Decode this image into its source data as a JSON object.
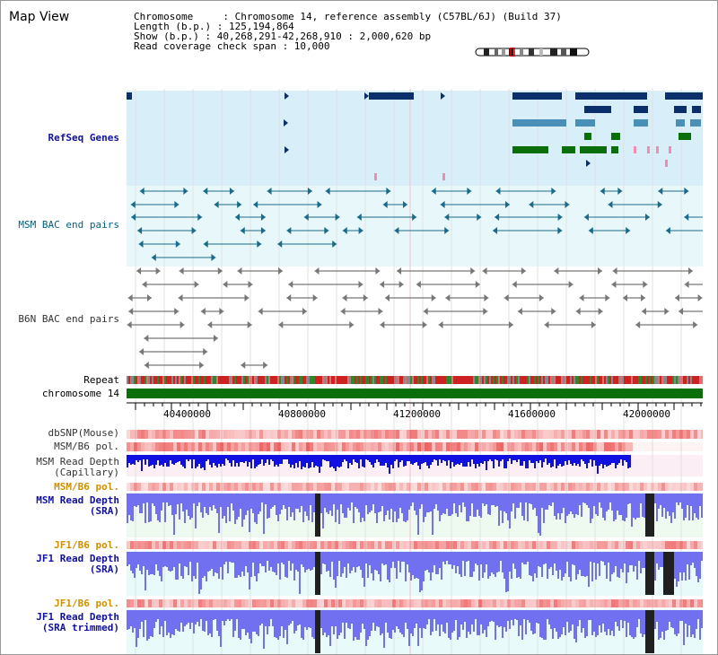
{
  "title": "Map View",
  "info": {
    "chromosome": "Chromosome     : Chromosome 14, reference assembly (C57BL/6J) (Build 37)",
    "length": "Length (b.p.) : 125,194,864",
    "show": "Show (b.p.) : 40,268,291-42,268,910 : 2,000,620 bp",
    "span": "Read coverage check span : 10,000"
  },
  "labels": {
    "refseq": "RefSeq Genes",
    "msm_bac": "MSM BAC end pairs",
    "b6n_bac": "B6N BAC end pairs",
    "repeat": "Repeat",
    "chromosome": "chromosome 14",
    "dbsnp": "dbSNP(Mouse)",
    "msm_b6_pol": "MSM/B6 pol.",
    "msm_depth_cap_1": "MSM Read Depth",
    "msm_depth_cap_2": "(Capillary)",
    "msm_b6_pol2": "MSM/B6 pol.",
    "msm_depth_sra_1": "MSM Read Depth",
    "msm_depth_sra_2": "(SRA)",
    "jf1_b6_pol": "JF1/B6 pol.",
    "jf1_depth_sra_1": "JF1 Read Depth",
    "jf1_depth_sra_2": "(SRA)",
    "jf1_b6_pol2": "JF1/B6 pol.",
    "jf1_depth_trim_1": "JF1 Read Depth",
    "jf1_depth_trim_2": "(SRA trimmed)"
  },
  "ruler": [
    "40400000",
    "40800000",
    "41200000",
    "41600000",
    "42000000"
  ],
  "colors": {
    "refseq_bg": "#d8effa",
    "msm_bac_bg": "#e8f8fa",
    "refseq_dark": "#0b2f6b",
    "refseq_mid": "#4a8fb8",
    "refseq_green": "#0a6e0a",
    "bac_line": "#1a6a8a",
    "b6n_line": "#555555",
    "chromosome_bar": "#0a6e0a",
    "depth_blue": "#1010e0",
    "depth_light": "#7070f0",
    "depth_dark": "#202020"
  }
}
